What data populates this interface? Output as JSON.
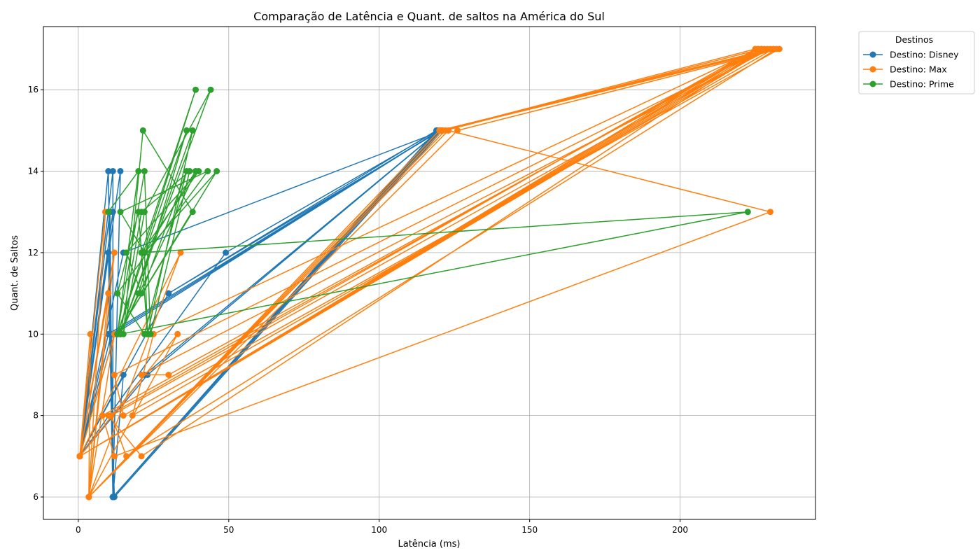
{
  "chart_data": {
    "type": "line",
    "title": "Comparação de Latência e Quant. de saltos na América do Sul",
    "xlabel": "Latência (ms)",
    "ylabel": "Quant. de Saltos",
    "xlim": [
      -11.6,
      245.0
    ],
    "ylim": [
      5.45,
      17.55
    ],
    "xticks": [
      0,
      50,
      100,
      150,
      200
    ],
    "yticks": [
      6,
      8,
      10,
      12,
      14,
      16
    ],
    "grid": true,
    "legend": {
      "title": "Destinos",
      "placement": "outside-top-right"
    },
    "series": [
      {
        "name": "Destino: Disney",
        "color": "#1f77b4",
        "points": [
          [
            0.5,
            7
          ],
          [
            10,
            14
          ],
          [
            11.5,
            6
          ],
          [
            120,
            15
          ],
          [
            11,
            10
          ],
          [
            0.5,
            7
          ],
          [
            11.5,
            14
          ],
          [
            11.5,
            6
          ],
          [
            119,
            15
          ],
          [
            30,
            11
          ],
          [
            0.5,
            7
          ],
          [
            14,
            14
          ],
          [
            11.5,
            6
          ],
          [
            120,
            15
          ],
          [
            12,
            10
          ],
          [
            0.5,
            7
          ],
          [
            10.5,
            13
          ],
          [
            11.5,
            6
          ],
          [
            119.5,
            15
          ],
          [
            49,
            12
          ],
          [
            0.5,
            7
          ],
          [
            11,
            10
          ],
          [
            11.5,
            6
          ],
          [
            120,
            15
          ],
          [
            22,
            9
          ],
          [
            0.5,
            7
          ],
          [
            10,
            11
          ],
          [
            12,
            6
          ],
          [
            121,
            15
          ],
          [
            15,
            12
          ],
          [
            0.5,
            7
          ],
          [
            11.5,
            13
          ],
          [
            11.5,
            6
          ],
          [
            120,
            15
          ],
          [
            23,
            9
          ],
          [
            0.5,
            7
          ],
          [
            10,
            12
          ],
          [
            11.5,
            6
          ],
          [
            120,
            15
          ],
          [
            10,
            10
          ],
          [
            0.5,
            7
          ],
          [
            15,
            9
          ],
          [
            11.5,
            6
          ],
          [
            120.5,
            15
          ],
          [
            30,
            11
          ]
        ]
      },
      {
        "name": "Destino: Max",
        "color": "#ff7f0e",
        "points": [
          [
            0.5,
            7
          ],
          [
            4,
            10
          ],
          [
            3.5,
            6
          ],
          [
            123,
            15
          ],
          [
            230,
            13
          ],
          [
            12,
            7
          ],
          [
            8,
            8
          ],
          [
            226,
            17
          ],
          [
            0.5,
            7
          ],
          [
            12,
            12
          ],
          [
            3.5,
            6
          ],
          [
            121,
            15
          ],
          [
            232,
            17
          ],
          [
            16,
            7
          ],
          [
            11,
            8
          ],
          [
            229,
            17
          ],
          [
            0.5,
            7
          ],
          [
            10,
            11
          ],
          [
            3.5,
            6
          ],
          [
            122,
            15
          ],
          [
            227,
            17
          ],
          [
            21,
            7
          ],
          [
            10,
            8
          ],
          [
            225,
            17
          ],
          [
            0.5,
            7
          ],
          [
            34,
            12
          ],
          [
            3.5,
            6
          ],
          [
            126,
            15
          ],
          [
            233,
            17
          ],
          [
            15,
            8
          ],
          [
            12,
            9
          ],
          [
            228,
            17
          ],
          [
            0.5,
            7
          ],
          [
            33,
            10
          ],
          [
            3.5,
            6
          ],
          [
            121,
            15
          ],
          [
            231,
            17
          ],
          [
            18,
            8
          ],
          [
            25,
            10
          ],
          [
            226,
            17
          ],
          [
            0.5,
            7
          ],
          [
            9,
            13
          ],
          [
            3.5,
            6
          ],
          [
            120,
            15
          ],
          [
            230,
            17
          ],
          [
            21,
            9
          ],
          [
            30,
            9
          ],
          [
            227,
            17
          ],
          [
            0.5,
            7
          ],
          [
            12,
            10
          ],
          [
            3.5,
            6
          ],
          [
            121,
            15
          ],
          [
            225,
            17
          ]
        ]
      },
      {
        "name": "Destino: Prime",
        "color": "#2ca02c",
        "points": [
          [
            10,
            13
          ],
          [
            20,
            14
          ],
          [
            13,
            10
          ],
          [
            39,
            16
          ],
          [
            21,
            12
          ],
          [
            222.5,
            13
          ],
          [
            14,
            10
          ],
          [
            44,
            16
          ],
          [
            22,
            13
          ],
          [
            15,
            10
          ],
          [
            21.5,
            15
          ],
          [
            38,
            13
          ],
          [
            13,
            10
          ],
          [
            36,
            15
          ],
          [
            20,
            11
          ],
          [
            14,
            10
          ],
          [
            38,
            15
          ],
          [
            23,
            10
          ],
          [
            21,
            12
          ],
          [
            40,
            14
          ],
          [
            16,
            12
          ],
          [
            21,
            11
          ],
          [
            36,
            14
          ],
          [
            22,
            10
          ],
          [
            13,
            11
          ],
          [
            43,
            14
          ],
          [
            14,
            13
          ],
          [
            22,
            12
          ],
          [
            46,
            14
          ],
          [
            13,
            10
          ],
          [
            22,
            14
          ],
          [
            24,
            10
          ],
          [
            37,
            14
          ],
          [
            21,
            13
          ],
          [
            14,
            10
          ],
          [
            39,
            14
          ],
          [
            22,
            12
          ],
          [
            23,
            10
          ],
          [
            20,
            13
          ],
          [
            13,
            11
          ]
        ]
      }
    ]
  }
}
